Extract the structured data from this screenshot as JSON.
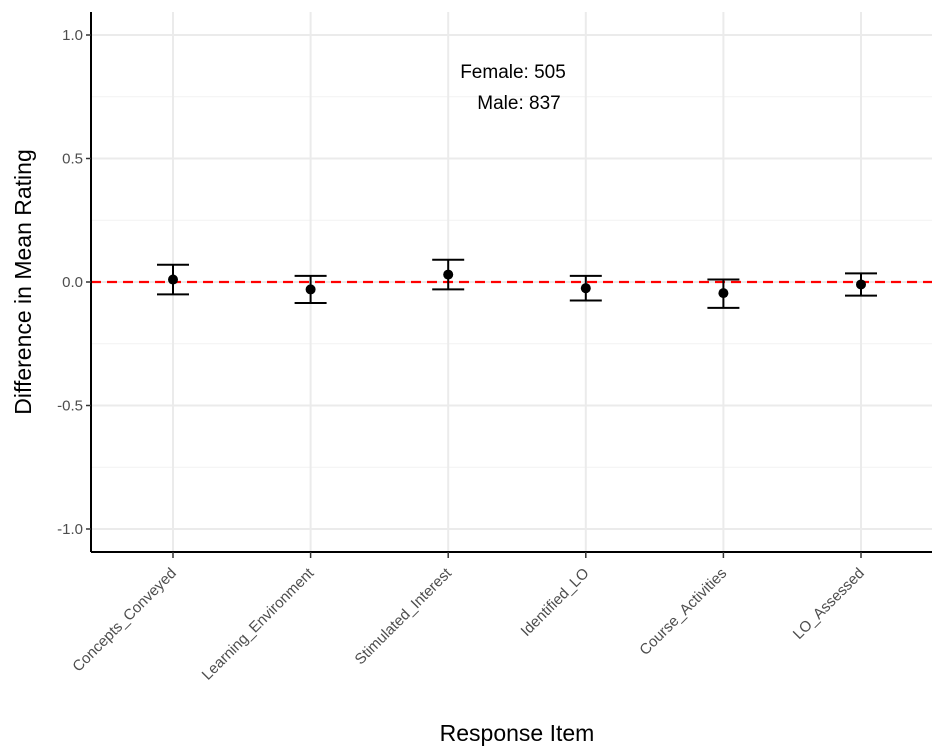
{
  "chart_data": {
    "type": "scatter",
    "title": "",
    "xlabel": "Response Item",
    "ylabel": "Difference in Mean Rating",
    "categories": [
      "Concepts_Conveyed",
      "Learning_Environment",
      "Stimulated_Interest",
      "Identified_LO",
      "Course_Activities",
      "LO_Assessed"
    ],
    "points": [
      {
        "category": "Concepts_Conveyed",
        "value": 0.01,
        "lower": -0.05,
        "upper": 0.07
      },
      {
        "category": "Learning_Environment",
        "value": -0.03,
        "lower": -0.085,
        "upper": 0.025
      },
      {
        "category": "Stimulated_Interest",
        "value": 0.03,
        "lower": -0.03,
        "upper": 0.09
      },
      {
        "category": "Identified_LO",
        "value": -0.025,
        "lower": -0.075,
        "upper": 0.025
      },
      {
        "category": "Course_Activities",
        "value": -0.045,
        "lower": -0.105,
        "upper": 0.01
      },
      {
        "category": "LO_Assessed",
        "value": -0.01,
        "lower": -0.055,
        "upper": 0.035
      }
    ],
    "yticks": [
      "1.0",
      "0.5",
      "0.0",
      "-0.5",
      "-1.0"
    ],
    "ylim": [
      -1.1,
      1.1
    ],
    "reference_line": {
      "y": 0,
      "color": "#ff0000",
      "style": "dashed"
    },
    "annotations": [
      "Female: 505",
      "Male: 837"
    ],
    "grid": true,
    "point_color": "#000000"
  }
}
